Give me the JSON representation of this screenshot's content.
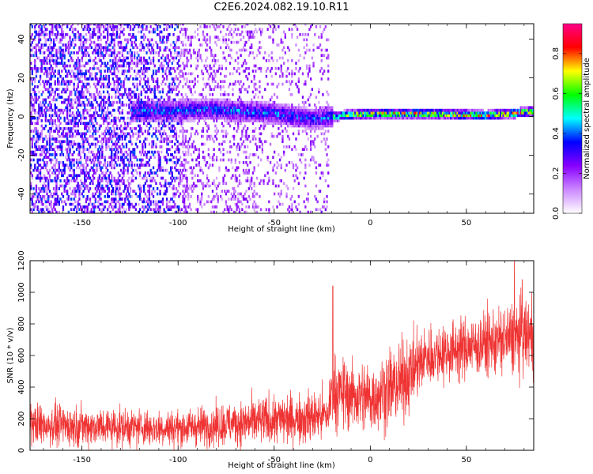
{
  "title": "C2E6.2024.082.19.10.R11",
  "chart_data": [
    {
      "type": "heatmap",
      "xlabel": "Height of straight line (km)",
      "ylabel": "Frequency (Hz)",
      "xlim": [
        -177,
        85
      ],
      "ylim": [
        -50,
        48
      ],
      "x_ticks": [
        -150,
        -100,
        -50,
        0,
        50
      ],
      "y_ticks": [
        -40,
        -20,
        0,
        20,
        40
      ],
      "x_tick_labels": [
        "-150",
        "-100",
        "-50",
        "0",
        "50"
      ],
      "y_tick_labels": [
        "-40",
        "-20",
        "0",
        "20",
        "40"
      ],
      "colorbar": {
        "label": "Normalized spectral amplitude",
        "range": [
          0,
          0.95
        ],
        "ticks": [
          0.0,
          0.2,
          0.4,
          0.6,
          0.8
        ],
        "tick_labels": [
          "0.0",
          "0.2",
          "0.4",
          "0.6",
          "0.8"
        ],
        "colors": [
          "#ffffff",
          "#cc88ff",
          "#8800ff",
          "#0000ff",
          "#00ffff",
          "#00ff00",
          "#ffff00",
          "#ff0000",
          "#ff0088"
        ]
      },
      "ridge": {
        "description": "spectral ridge centered near 0 Hz",
        "x_start": -125,
        "x_end": 85,
        "center_hz": [
          [
            -125,
            2
          ],
          [
            -80,
            3
          ],
          [
            -50,
            1
          ],
          [
            -30,
            -2
          ],
          [
            -15,
            0
          ],
          [
            0,
            1
          ],
          [
            30,
            1
          ],
          [
            60,
            0
          ],
          [
            85,
            2
          ]
        ]
      }
    },
    {
      "type": "line",
      "xlabel": "Height of straight line (km)",
      "ylabel": "SNR (10 * v/v)",
      "xlim": [
        -177,
        85
      ],
      "ylim": [
        0,
        1200
      ],
      "x_ticks": [
        -150,
        -100,
        -50,
        0,
        50
      ],
      "y_ticks": [
        0,
        200,
        400,
        600,
        800,
        1000,
        1200
      ],
      "x_tick_labels": [
        "-150",
        "-100",
        "-50",
        "0",
        "50"
      ],
      "y_tick_labels": [
        "0",
        "200",
        "400",
        "600",
        "800",
        "1000",
        "1200"
      ],
      "series": [
        {
          "name": "SNR",
          "color": "#ef3333",
          "envelope": [
            {
              "x": -177,
              "mean": 165,
              "spread": 120
            },
            {
              "x": -140,
              "mean": 150,
              "spread": 110
            },
            {
              "x": -100,
              "mean": 140,
              "spread": 100
            },
            {
              "x": -75,
              "mean": 165,
              "spread": 120
            },
            {
              "x": -50,
              "mean": 190,
              "spread": 140
            },
            {
              "x": -22,
              "mean": 220,
              "spread": 150
            },
            {
              "x": -20,
              "mean": 370,
              "spread": 200
            },
            {
              "x": 0,
              "mean": 330,
              "spread": 200
            },
            {
              "x": 15,
              "mean": 420,
              "spread": 230
            },
            {
              "x": 30,
              "mean": 600,
              "spread": 170
            },
            {
              "x": 50,
              "mean": 650,
              "spread": 170
            },
            {
              "x": 70,
              "mean": 700,
              "spread": 200
            },
            {
              "x": 85,
              "mean": 730,
              "spread": 220
            }
          ],
          "peaks": [
            [
              -19.5,
              1040
            ],
            [
              75,
              1200
            ],
            [
              79,
              1080
            ]
          ]
        }
      ]
    }
  ]
}
